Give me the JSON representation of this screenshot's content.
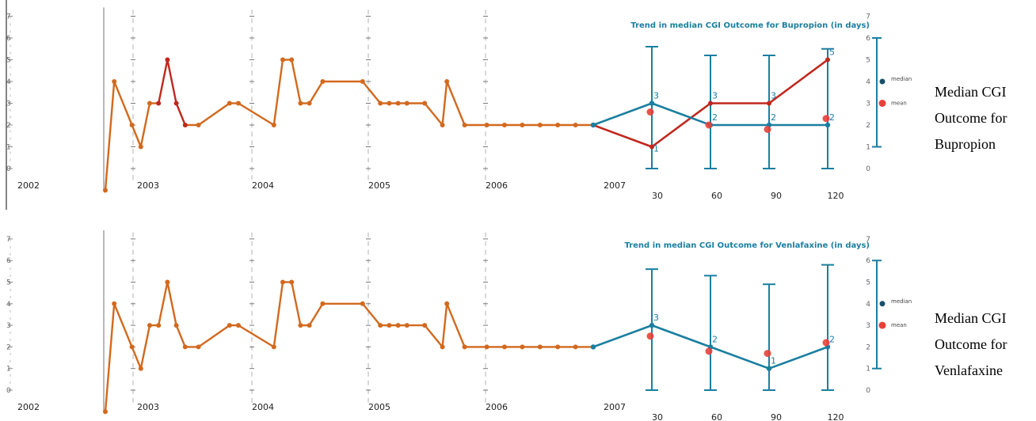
{
  "colors": {
    "orange": "#d2691e",
    "red": "#c0281e",
    "blue": "#1a7fa0",
    "mean_dot": "#e8403a",
    "grid": "#b0b0b0"
  },
  "chart_data": [
    {
      "type": "line",
      "title": "Trend in median CGI Outcome for Bupropion (in days)",
      "caption": [
        "Median CGI",
        "Outcome for",
        "Bupropion"
      ],
      "ylim": [
        0,
        7
      ],
      "yticks": [
        0,
        1,
        2,
        3,
        4,
        5,
        6,
        7
      ],
      "year_labels": [
        "2002",
        "2003",
        "2004",
        "2005",
        "2006",
        "2007"
      ],
      "day_labels": [
        "30",
        "60",
        "90",
        "120"
      ],
      "legend": [
        "median",
        "mean"
      ],
      "series": [
        {
          "role": "history",
          "values": [
            {
              "x": 2002.3,
              "y": -1.0
            },
            {
              "x": 2002.4,
              "y": 4
            },
            {
              "x": 2002.6,
              "y": 2
            },
            {
              "x": 2002.7,
              "y": 1
            },
            {
              "x": 2002.8,
              "y": 3
            },
            {
              "x": 2002.9,
              "y": 3
            },
            {
              "x": 2003.0,
              "y": 5
            },
            {
              "x": 2003.1,
              "y": 3
            },
            {
              "x": 2003.2,
              "y": 2
            },
            {
              "x": 2003.35,
              "y": 2
            },
            {
              "x": 2003.7,
              "y": 3
            },
            {
              "x": 2003.8,
              "y": 3
            },
            {
              "x": 2004.2,
              "y": 2
            },
            {
              "x": 2004.3,
              "y": 5
            },
            {
              "x": 2004.4,
              "y": 5
            },
            {
              "x": 2004.5,
              "y": 3
            },
            {
              "x": 2004.6,
              "y": 3
            },
            {
              "x": 2004.75,
              "y": 4
            },
            {
              "x": 2005.2,
              "y": 4
            },
            {
              "x": 2005.4,
              "y": 3
            },
            {
              "x": 2005.5,
              "y": 3
            },
            {
              "x": 2005.6,
              "y": 3
            },
            {
              "x": 2005.7,
              "y": 3
            },
            {
              "x": 2005.9,
              "y": 3
            },
            {
              "x": 2006.1,
              "y": 2
            },
            {
              "x": 2006.15,
              "y": 4
            },
            {
              "x": 2006.35,
              "y": 2
            },
            {
              "x": 2006.6,
              "y": 2
            },
            {
              "x": 2006.8,
              "y": 2
            },
            {
              "x": 2007.0,
              "y": 2
            },
            {
              "x": 2007.2,
              "y": 2
            },
            {
              "x": 2007.4,
              "y": 2
            },
            {
              "x": 2007.6,
              "y": 2
            },
            {
              "x": 2007.8,
              "y": 2
            }
          ],
          "red_segment": [
            5,
            8
          ]
        },
        {
          "name": "median",
          "days": [
            0,
            30,
            60,
            90,
            120
          ],
          "values": [
            2,
            3,
            2,
            2,
            2
          ],
          "labels": [
            "",
            "3",
            "2",
            "2",
            "2"
          ],
          "error_high": [
            null,
            5.6,
            5.2,
            5.2,
            5.5
          ],
          "error_low": [
            null,
            0,
            0,
            0,
            0
          ]
        },
        {
          "name": "mean",
          "days": [
            30,
            60,
            90,
            120
          ],
          "values": [
            2.6,
            2.0,
            1.8,
            2.3
          ]
        },
        {
          "name": "comparison",
          "days": [
            0,
            30,
            60,
            90,
            120
          ],
          "values": [
            2,
            1,
            3,
            3,
            5
          ],
          "labels": [
            "",
            "1",
            "3",
            "3",
            "5"
          ]
        }
      ]
    },
    {
      "type": "line",
      "title": "Trend in median CGI Outcome for Venlafaxine (in days)",
      "caption": [
        "Median CGI",
        "Outcome for",
        "Venlafaxine"
      ],
      "ylim": [
        0,
        7
      ],
      "yticks": [
        0,
        1,
        2,
        3,
        4,
        5,
        6,
        7
      ],
      "year_labels": [
        "2002",
        "2003",
        "2004",
        "2005",
        "2006",
        "2007"
      ],
      "day_labels": [
        "30",
        "60",
        "90",
        "120"
      ],
      "legend": [
        "median",
        "mean"
      ],
      "series": [
        {
          "role": "history",
          "values": [
            {
              "x": 2002.3,
              "y": -1.0
            },
            {
              "x": 2002.4,
              "y": 4
            },
            {
              "x": 2002.6,
              "y": 2
            },
            {
              "x": 2002.7,
              "y": 1
            },
            {
              "x": 2002.8,
              "y": 3
            },
            {
              "x": 2002.9,
              "y": 3
            },
            {
              "x": 2003.0,
              "y": 5
            },
            {
              "x": 2003.1,
              "y": 3
            },
            {
              "x": 2003.2,
              "y": 2
            },
            {
              "x": 2003.35,
              "y": 2
            },
            {
              "x": 2003.7,
              "y": 3
            },
            {
              "x": 2003.8,
              "y": 3
            },
            {
              "x": 2004.2,
              "y": 2
            },
            {
              "x": 2004.3,
              "y": 5
            },
            {
              "x": 2004.4,
              "y": 5
            },
            {
              "x": 2004.5,
              "y": 3
            },
            {
              "x": 2004.6,
              "y": 3
            },
            {
              "x": 2004.75,
              "y": 4
            },
            {
              "x": 2005.2,
              "y": 4
            },
            {
              "x": 2005.4,
              "y": 3
            },
            {
              "x": 2005.5,
              "y": 3
            },
            {
              "x": 2005.6,
              "y": 3
            },
            {
              "x": 2005.7,
              "y": 3
            },
            {
              "x": 2005.9,
              "y": 3
            },
            {
              "x": 2006.1,
              "y": 2
            },
            {
              "x": 2006.15,
              "y": 4
            },
            {
              "x": 2006.35,
              "y": 2
            },
            {
              "x": 2006.6,
              "y": 2
            },
            {
              "x": 2006.8,
              "y": 2
            },
            {
              "x": 2007.0,
              "y": 2
            },
            {
              "x": 2007.2,
              "y": 2
            },
            {
              "x": 2007.4,
              "y": 2
            },
            {
              "x": 2007.6,
              "y": 2
            },
            {
              "x": 2007.8,
              "y": 2
            }
          ],
          "red_segment": null
        },
        {
          "name": "median",
          "days": [
            0,
            30,
            60,
            90,
            120
          ],
          "values": [
            2,
            3,
            2,
            1,
            2
          ],
          "labels": [
            "",
            "3",
            "2",
            "1",
            "2"
          ],
          "error_high": [
            null,
            5.6,
            5.3,
            4.9,
            5.8
          ],
          "error_low": [
            null,
            0,
            0,
            0,
            0
          ]
        },
        {
          "name": "mean",
          "days": [
            30,
            60,
            90,
            120
          ],
          "values": [
            2.5,
            1.8,
            1.7,
            2.2
          ]
        }
      ]
    }
  ]
}
